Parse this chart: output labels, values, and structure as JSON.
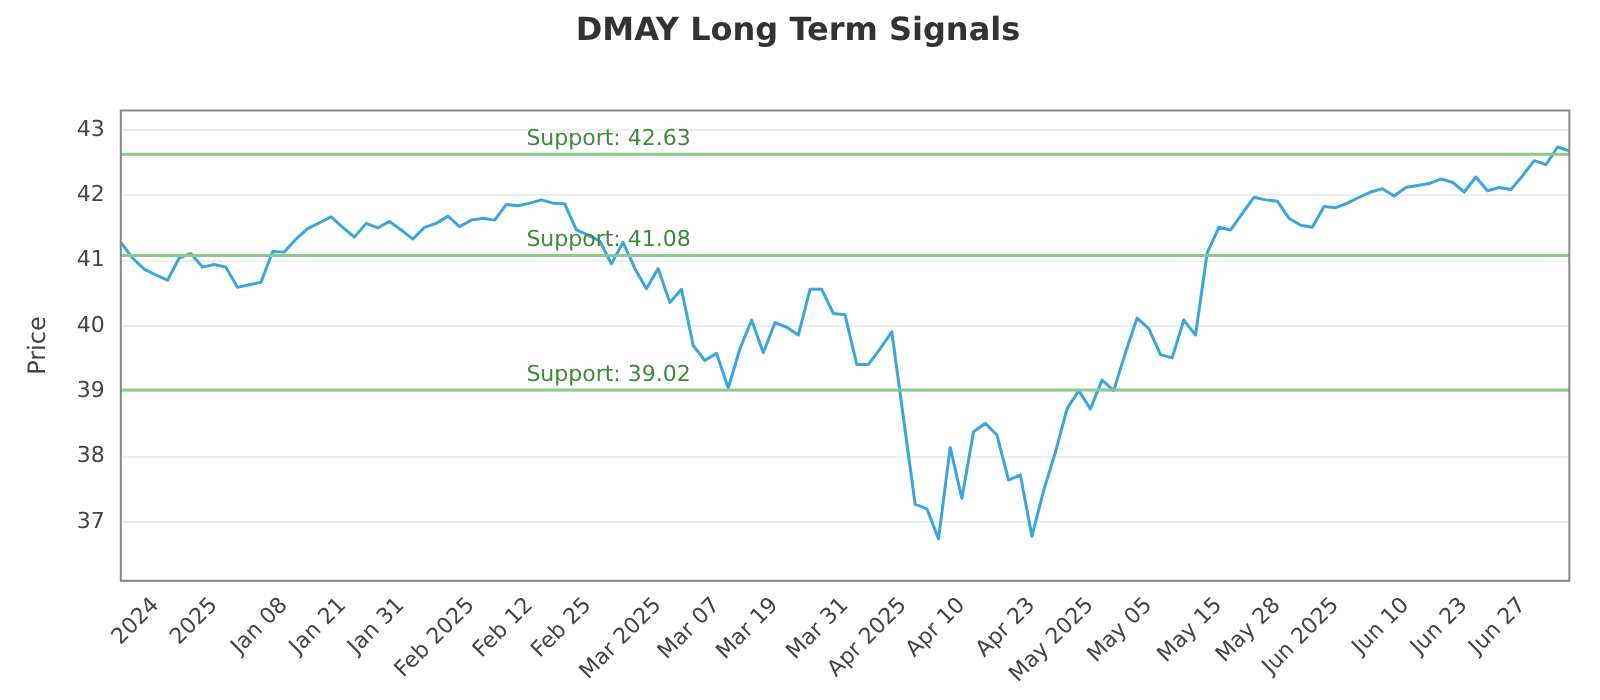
{
  "chart_data": {
    "type": "line",
    "title": "DMAY Long Term Signals",
    "ylabel": "Price",
    "categories": [
      null,
      null,
      null,
      "2024",
      null,
      null,
      null,
      null,
      "2025",
      null,
      null,
      null,
      null,
      null,
      "Jan 08",
      null,
      null,
      null,
      null,
      "Jan 21",
      null,
      null,
      null,
      null,
      "Jan 31",
      null,
      null,
      null,
      null,
      null,
      "Feb 2025",
      null,
      null,
      null,
      null,
      "Feb 12",
      null,
      null,
      null,
      null,
      "Feb 25",
      null,
      null,
      null,
      null,
      null,
      "Mar 2025",
      null,
      null,
      null,
      null,
      "Mar 07",
      null,
      null,
      null,
      null,
      "Mar 19",
      null,
      null,
      null,
      null,
      null,
      "Mar 31",
      null,
      null,
      null,
      null,
      "Apr 2025",
      null,
      null,
      null,
      null,
      "Apr 10",
      null,
      null,
      null,
      null,
      null,
      "Apr 23",
      null,
      null,
      null,
      null,
      "May 2025",
      null,
      null,
      null,
      null,
      "May 05",
      null,
      null,
      null,
      null,
      null,
      "May 15",
      null,
      null,
      null,
      null,
      "May 28",
      null,
      null,
      null,
      null,
      "Jun 2025",
      null,
      null,
      null,
      null,
      null,
      "Jun 10",
      null,
      null,
      null,
      null,
      "Jun 23",
      null,
      null,
      null,
      null,
      "Jun 27",
      null,
      null,
      null,
      null
    ],
    "series": [
      {
        "color": "#3aa6dd",
        "values": [
          41.28,
          41.04,
          40.87,
          40.78,
          40.7,
          41.04,
          41.11,
          40.9,
          40.94,
          40.9,
          40.59,
          40.63,
          40.67,
          41.14,
          41.13,
          41.33,
          41.49,
          41.58,
          41.67,
          41.51,
          41.36,
          41.57,
          41.5,
          41.6,
          41.47,
          41.33,
          41.51,
          41.57,
          41.68,
          41.52,
          41.62,
          41.65,
          41.62,
          41.86,
          41.84,
          41.88,
          41.93,
          41.88,
          41.87,
          41.47,
          41.39,
          41.3,
          40.95,
          41.28,
          40.88,
          40.57,
          40.88,
          40.36,
          40.56,
          39.7,
          39.47,
          39.58,
          39.05,
          39.65,
          40.09,
          39.59,
          40.05,
          39.98,
          39.86,
          40.56,
          40.56,
          40.19,
          40.17,
          39.41,
          39.41,
          39.65,
          39.91,
          38.59,
          37.27,
          37.2,
          36.74,
          38.14,
          37.36,
          38.38,
          38.51,
          38.33,
          37.64,
          37.72,
          36.78,
          37.48,
          38.06,
          38.73,
          39.01,
          38.73,
          39.17,
          39.01,
          39.59,
          40.12,
          39.96,
          39.56,
          39.51,
          40.09,
          39.86,
          41.12,
          41.51,
          41.47,
          41.72,
          41.97,
          41.93,
          41.91,
          41.65,
          41.54,
          41.51,
          41.83,
          41.81,
          41.88,
          41.97,
          42.05,
          42.1,
          41.99,
          42.12,
          42.15,
          42.18,
          42.25,
          42.2,
          42.05,
          42.28,
          42.07,
          42.12,
          42.09,
          42.3,
          42.53,
          42.47,
          42.74,
          42.68
        ]
      }
    ],
    "ylim": [
      36.1,
      43.3
    ],
    "yticks": [
      37,
      38,
      39,
      40,
      41,
      42,
      43
    ],
    "grid": "y",
    "marker": "none",
    "line_style": "solid",
    "ref_lines": [
      {
        "axis": "y",
        "value": 42.63,
        "label": "Support: 42.63",
        "color": "#8cc98c"
      },
      {
        "axis": "y",
        "value": 41.08,
        "label": "Support: 41.08",
        "color": "#8cc98c"
      },
      {
        "axis": "y",
        "value": 39.02,
        "label": "Support: 39.02",
        "color": "#8cc98c"
      }
    ]
  }
}
